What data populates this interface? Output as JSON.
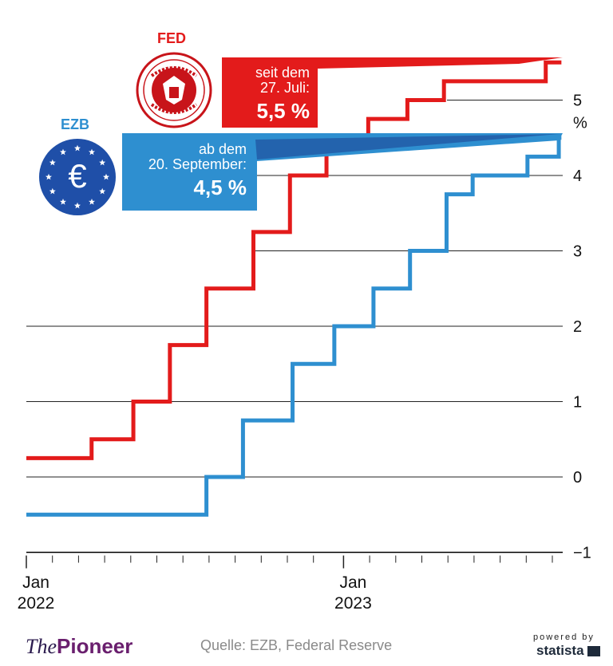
{
  "chart_data": {
    "type": "line",
    "step": true,
    "title": "",
    "ylim": [
      -1,
      5.5
    ],
    "y_ticks": [
      -1,
      0,
      1,
      2,
      3,
      4,
      5
    ],
    "y_tick_labels": [
      "−1",
      "0",
      "1",
      "2",
      "3",
      "4",
      "5"
    ],
    "y_unit": "%",
    "x_start": "2022-01",
    "x_end": "2023-09",
    "x_tick_labels": [
      {
        "month_index": 0,
        "line1": "Jan",
        "line2": "2022"
      },
      {
        "month_index": 12,
        "line1": "Jan",
        "line2": "2023"
      }
    ],
    "series": [
      {
        "name": "FED",
        "color": "#e31b1b",
        "points": [
          {
            "month": 0,
            "value": 0.25
          },
          {
            "month": 2.5,
            "value": 0.5
          },
          {
            "month": 4.1,
            "value": 1.0
          },
          {
            "month": 5.5,
            "value": 1.75
          },
          {
            "month": 6.9,
            "value": 2.5
          },
          {
            "month": 8.7,
            "value": 3.25
          },
          {
            "month": 10.1,
            "value": 4.0
          },
          {
            "month": 11.5,
            "value": 4.5
          },
          {
            "month": 13.1,
            "value": 4.75
          },
          {
            "month": 14.6,
            "value": 5.0
          },
          {
            "month": 16.0,
            "value": 5.25
          },
          {
            "month": 19.9,
            "value": 5.5
          },
          {
            "month": 20.5,
            "value": 5.5
          }
        ]
      },
      {
        "name": "EZB",
        "color": "#2e8fd0",
        "points": [
          {
            "month": 0,
            "value": -0.5
          },
          {
            "month": 6.9,
            "value": 0.0
          },
          {
            "month": 8.3,
            "value": 0.75
          },
          {
            "month": 10.2,
            "value": 1.5
          },
          {
            "month": 11.8,
            "value": 2.0
          },
          {
            "month": 13.3,
            "value": 2.5
          },
          {
            "month": 14.7,
            "value": 3.0
          },
          {
            "month": 16.1,
            "value": 3.75
          },
          {
            "month": 17.1,
            "value": 4.0
          },
          {
            "month": 19.2,
            "value": 4.25
          },
          {
            "month": 20.4,
            "value": 4.5
          },
          {
            "month": 20.5,
            "value": 4.5
          }
        ]
      }
    ]
  },
  "fed": {
    "label": "FED",
    "seal_text": "UNITED STATES · FEDERAL RESERVE SYSTEM",
    "callout_line1": "seit dem",
    "callout_line2": "27. Juli:",
    "callout_value": "5,5 %"
  },
  "ezb": {
    "label": "EZB",
    "symbol": "€",
    "callout_line1": "ab dem",
    "callout_line2": "20. September:",
    "callout_value": "4,5 %"
  },
  "footer": {
    "brand_prefix": "The",
    "brand_name": "Pioneer",
    "source": "Quelle: EZB, Federal Reserve",
    "powered_by": "powered by",
    "statista": "statista"
  }
}
